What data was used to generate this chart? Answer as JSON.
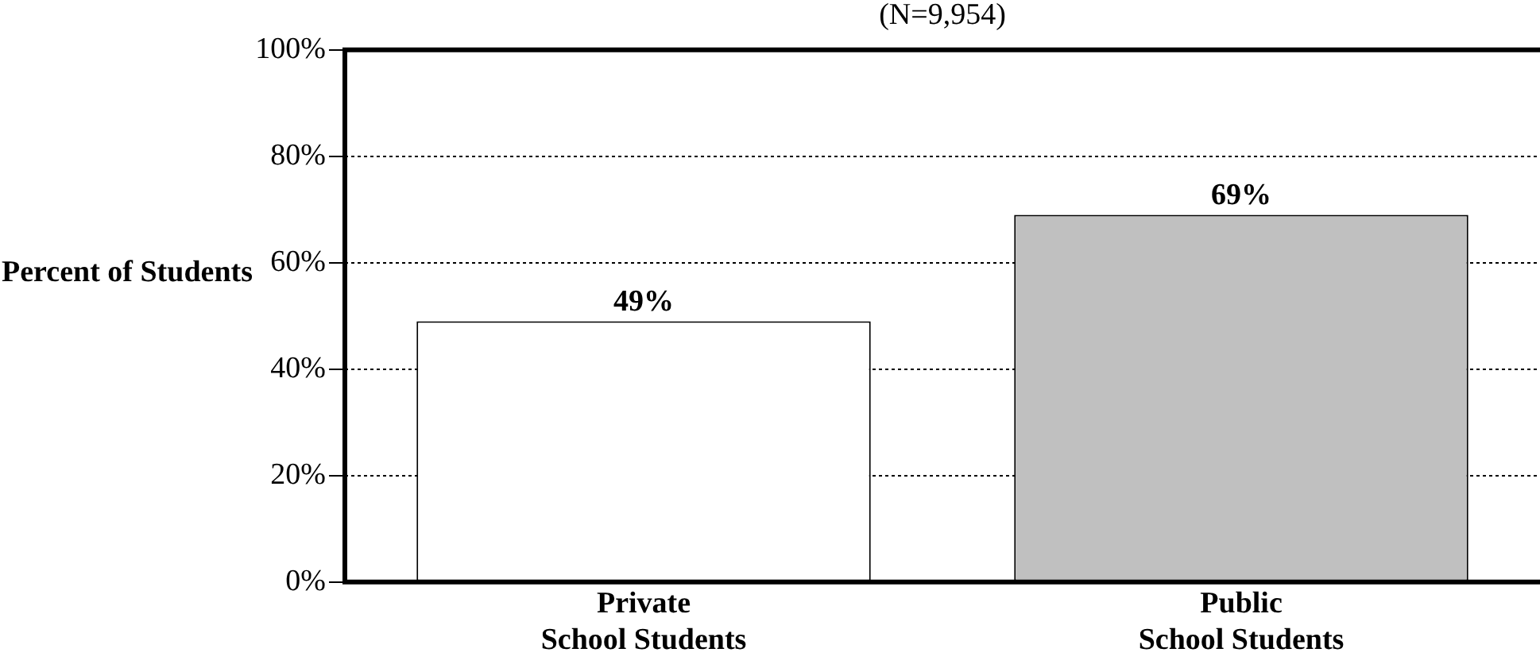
{
  "chart_data": {
    "type": "bar",
    "subtitle": "(N=9,954)",
    "ylabel": "Percent of Students",
    "categories": [
      "Private School Students",
      "Public School Students"
    ],
    "values": [
      49,
      69
    ],
    "colors": [
      "#ffffff",
      "#c0c0c0"
    ],
    "value_labels": [
      "49%",
      "69%"
    ],
    "ylim": [
      0,
      100
    ],
    "yticks": [
      {
        "value": 0,
        "label": "0%"
      },
      {
        "value": 20,
        "label": "20%"
      },
      {
        "value": 40,
        "label": "40%"
      },
      {
        "value": 60,
        "label": "60%"
      },
      {
        "value": 80,
        "label": "80%"
      },
      {
        "value": 100,
        "label": "100%"
      }
    ],
    "grid": "y",
    "legend": false
  }
}
